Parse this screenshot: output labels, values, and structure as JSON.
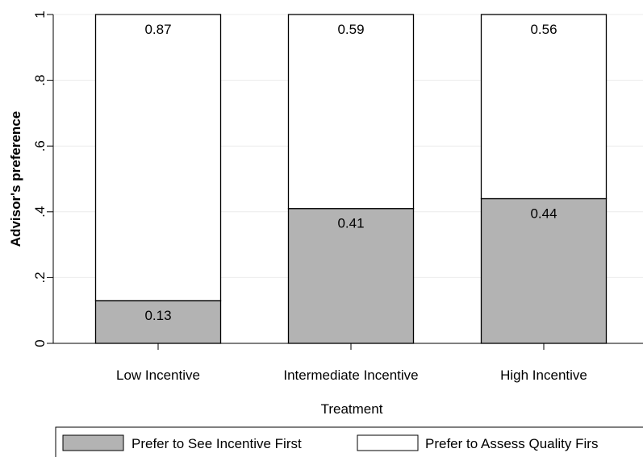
{
  "chart_data": {
    "type": "bar",
    "stacked": true,
    "title": "",
    "xlabel": "Treatment",
    "ylabel": "Advisor's preference",
    "ylim": [
      0,
      1
    ],
    "yticks": [
      0,
      0.2,
      0.4,
      0.6,
      0.8,
      1
    ],
    "ytick_labels": [
      "0",
      ".2",
      ".4",
      ".6",
      ".8",
      "1"
    ],
    "categories": [
      "Low Incentive",
      "Intermediate Incentive",
      "High Incentive"
    ],
    "series": [
      {
        "name": "Prefer to See Incentive First",
        "values": [
          0.13,
          0.41,
          0.44
        ],
        "labels": [
          "0.13",
          "0.41",
          "0.44"
        ],
        "color": "#b3b3b3"
      },
      {
        "name": "Prefer to Assess Quality Firs",
        "values": [
          0.87,
          0.59,
          0.56
        ],
        "labels": [
          "0.87",
          "0.59",
          "0.56"
        ],
        "color": "#ffffff"
      }
    ],
    "grid": true,
    "legend_position": "bottom"
  }
}
